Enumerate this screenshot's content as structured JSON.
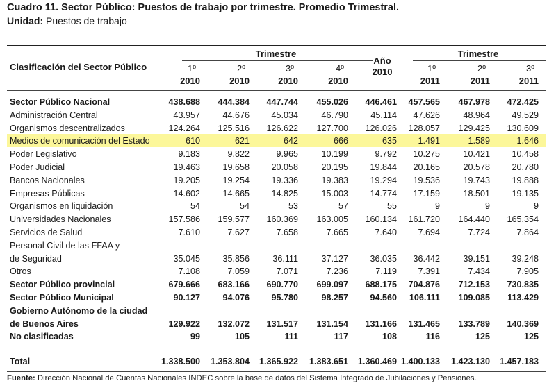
{
  "title": "Cuadro 11. Sector Público: Puestos de trabajo por trimestre. Promedio Trimestral.",
  "unit_label": "Unidad:",
  "unit_value": "Puestos de trabajo",
  "header": {
    "classification": "Clasificación del Sector Público",
    "trimestre_left": "Trimestre",
    "trimestre_right": "Trimestre",
    "year_label": "Año",
    "year_value": "2010",
    "columns": [
      {
        "q": "1º",
        "y": "2010"
      },
      {
        "q": "2º",
        "y": "2010"
      },
      {
        "q": "3º",
        "y": "2010"
      },
      {
        "q": "4º",
        "y": "2010"
      },
      {
        "q": "",
        "y": ""
      },
      {
        "q": "1º",
        "y": "2011"
      },
      {
        "q": "2º",
        "y": "2011"
      },
      {
        "q": "3º",
        "y": "2011"
      }
    ]
  },
  "rows": [
    {
      "label": "Sector Público Nacional",
      "bold": true,
      "values": [
        "438.688",
        "444.384",
        "447.744",
        "455.026",
        "446.461",
        "457.565",
        "467.978",
        "472.425"
      ]
    },
    {
      "label": "Administración Central",
      "bold": false,
      "values": [
        "43.957",
        "44.676",
        "45.034",
        "46.790",
        "45.114",
        "47.626",
        "48.964",
        "49.529"
      ]
    },
    {
      "label": "Organismos descentralizados",
      "bold": false,
      "values": [
        "124.264",
        "125.516",
        "126.622",
        "127.700",
        "126.026",
        "128.057",
        "129.425",
        "130.609"
      ]
    },
    {
      "label": "Medios de comunicación del Estado",
      "bold": false,
      "highlight": true,
      "values": [
        "610",
        "621",
        "642",
        "666",
        "635",
        "1.491",
        "1.589",
        "1.646"
      ]
    },
    {
      "label": "Poder Legislativo",
      "bold": false,
      "values": [
        "9.183",
        "9.822",
        "9.965",
        "10.199",
        "9.792",
        "10.275",
        "10.421",
        "10.458"
      ]
    },
    {
      "label": "Poder Judicial",
      "bold": false,
      "values": [
        "19.463",
        "19.658",
        "20.058",
        "20.195",
        "19.844",
        "20.165",
        "20.578",
        "20.780"
      ]
    },
    {
      "label": "Bancos Nacionales",
      "bold": false,
      "values": [
        "19.205",
        "19.254",
        "19.336",
        "19.383",
        "19.294",
        "19.536",
        "19.743",
        "19.888"
      ]
    },
    {
      "label": "Empresas Públicas",
      "bold": false,
      "values": [
        "14.602",
        "14.665",
        "14.825",
        "15.003",
        "14.774",
        "17.159",
        "18.501",
        "19.135"
      ]
    },
    {
      "label": "Organismos en liquidación",
      "bold": false,
      "values": [
        "54",
        "54",
        "53",
        "57",
        "55",
        "9",
        "9",
        "9"
      ]
    },
    {
      "label": "Universidades Nacionales",
      "bold": false,
      "values": [
        "157.586",
        "159.577",
        "160.369",
        "163.005",
        "160.134",
        "161.720",
        "164.440",
        "165.354"
      ]
    },
    {
      "label": "Servicios de Salud",
      "bold": false,
      "values": [
        "7.610",
        "7.627",
        "7.658",
        "7.665",
        "7.640",
        "7.694",
        "7.724",
        "7.864"
      ]
    },
    {
      "label": "Personal Civil de las FFAA y",
      "bold": false,
      "values": [
        "",
        "",
        "",
        "",
        "",
        "",
        "",
        ""
      ]
    },
    {
      "label": "de Seguridad",
      "bold": false,
      "values": [
        "35.045",
        "35.856",
        "36.111",
        "37.127",
        "36.035",
        "36.442",
        "39.151",
        "39.248"
      ]
    },
    {
      "label": "Otros",
      "bold": false,
      "values": [
        "7.108",
        "7.059",
        "7.071",
        "7.236",
        "7.119",
        "7.391",
        "7.434",
        "7.905"
      ]
    },
    {
      "label": "Sector Público provincial",
      "bold": true,
      "values": [
        "679.666",
        "683.166",
        "690.770",
        "699.097",
        "688.175",
        "704.876",
        "712.153",
        "730.835"
      ]
    },
    {
      "label": "Sector Público Municipal",
      "bold": true,
      "values": [
        "90.127",
        "94.076",
        "95.780",
        "98.257",
        "94.560",
        "106.111",
        "109.085",
        "113.429"
      ]
    },
    {
      "label": "Gobierno Autónomo de la ciudad",
      "bold": true,
      "values": [
        "",
        "",
        "",
        "",
        "",
        "",
        "",
        ""
      ]
    },
    {
      "label": "de Buenos Aires",
      "bold": true,
      "values": [
        "129.922",
        "132.072",
        "131.517",
        "131.154",
        "131.166",
        "131.465",
        "133.789",
        "140.369"
      ]
    },
    {
      "label": "No clasificadas",
      "bold": true,
      "values": [
        "99",
        "105",
        "111",
        "117",
        "108",
        "116",
        "125",
        "125"
      ]
    }
  ],
  "total": {
    "label": "Total",
    "values": [
      "1.338.500",
      "1.353.804",
      "1.365.922",
      "1.383.651",
      "1.360.469",
      "1.400.133",
      "1.423.130",
      "1.457.183"
    ]
  },
  "source_label": "Fuente:",
  "source_text": "Dirección Nacional de Cuentas Nacionales INDEC sobre la base de datos del Sistema Integrado de Jubilaciones y Pensiones.",
  "highlight_color": "#fcf79a"
}
